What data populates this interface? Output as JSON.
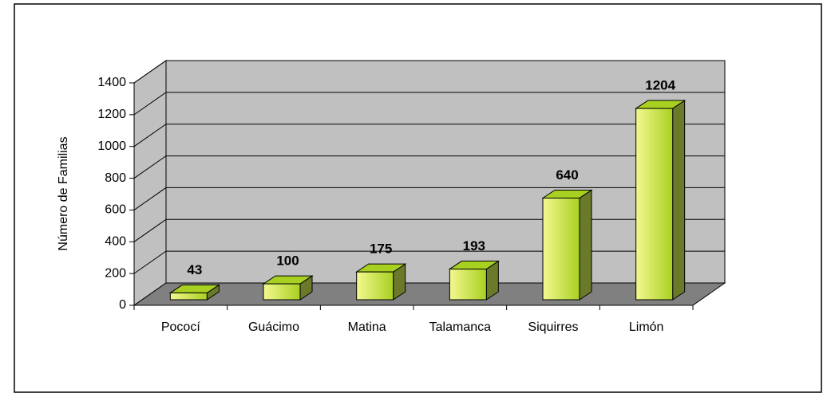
{
  "chart_data": {
    "type": "bar3d",
    "y_label": "Número de Familias",
    "categories": [
      "Pococí",
      "Guácimo",
      "Matina",
      "Talamanca",
      "Siquirres",
      "Limón"
    ],
    "values": [
      43,
      100,
      175,
      193,
      640,
      1204
    ],
    "color": "#a8d020",
    "ylim": [
      0,
      1400
    ],
    "yticks": [
      0,
      200,
      400,
      600,
      800,
      1000,
      1200,
      1400
    ],
    "grid": true
  }
}
